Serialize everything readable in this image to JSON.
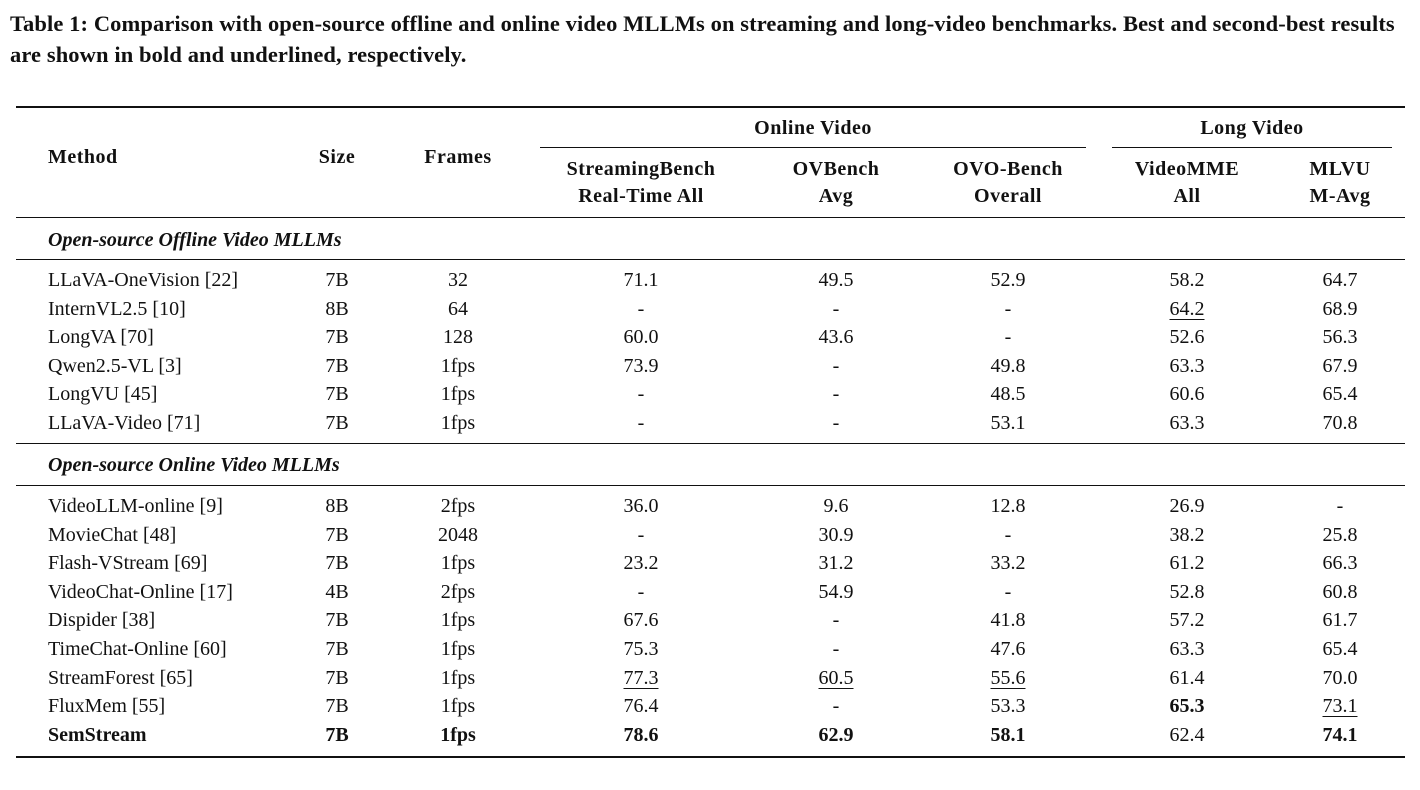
{
  "caption": "Table 1: Comparison with open-source offline and online video MLLMs on streaming and long-video benchmarks. Best and second-best results are shown in bold and underlined, respectively.",
  "header": {
    "method": "Method",
    "size": "Size",
    "frames": "Frames",
    "online_group": "Online Video",
    "long_group": "Long Video",
    "cols": [
      {
        "line1": "StreamingBench",
        "line2": "Real-Time All"
      },
      {
        "line1": "OVBench",
        "line2": "Avg"
      },
      {
        "line1": "OVO-Bench",
        "line2": "Overall"
      },
      {
        "line1": "VideoMME",
        "line2": "All"
      },
      {
        "line1": "MLVU",
        "line2": "M-Avg"
      }
    ]
  },
  "sections": [
    {
      "title": "Open-source Offline Video MLLMs",
      "rows": [
        {
          "method": "LLaVA-OneVision [22]",
          "size": "7B",
          "frames": "32",
          "values": [
            "71.1",
            "49.5",
            "52.9",
            "58.2",
            "64.7"
          ]
        },
        {
          "method": "InternVL2.5 [10]",
          "size": "8B",
          "frames": "64",
          "values": [
            "-",
            "-",
            "-",
            "64.2",
            "68.9"
          ],
          "underline": [
            3
          ]
        },
        {
          "method": "LongVA [70]",
          "size": "7B",
          "frames": "128",
          "values": [
            "60.0",
            "43.6",
            "-",
            "52.6",
            "56.3"
          ]
        },
        {
          "method": "Qwen2.5-VL [3]",
          "size": "7B",
          "frames": "1fps",
          "values": [
            "73.9",
            "-",
            "49.8",
            "63.3",
            "67.9"
          ]
        },
        {
          "method": "LongVU [45]",
          "size": "7B",
          "frames": "1fps",
          "values": [
            "-",
            "-",
            "48.5",
            "60.6",
            "65.4"
          ]
        },
        {
          "method": "LLaVA-Video [71]",
          "size": "7B",
          "frames": "1fps",
          "values": [
            "-",
            "-",
            "53.1",
            "63.3",
            "70.8"
          ]
        }
      ]
    },
    {
      "title": "Open-source Online Video MLLMs",
      "rows": [
        {
          "method": "VideoLLM-online [9]",
          "size": "8B",
          "frames": "2fps",
          "values": [
            "36.0",
            "9.6",
            "12.8",
            "26.9",
            "-"
          ]
        },
        {
          "method": "MovieChat [48]",
          "size": "7B",
          "frames": "2048",
          "values": [
            "-",
            "30.9",
            "-",
            "38.2",
            "25.8"
          ]
        },
        {
          "method": "Flash-VStream [69]",
          "size": "7B",
          "frames": "1fps",
          "values": [
            "23.2",
            "31.2",
            "33.2",
            "61.2",
            "66.3"
          ]
        },
        {
          "method": "VideoChat-Online [17]",
          "size": "4B",
          "frames": "2fps",
          "values": [
            "-",
            "54.9",
            "-",
            "52.8",
            "60.8"
          ]
        },
        {
          "method": "Dispider [38]",
          "size": "7B",
          "frames": "1fps",
          "values": [
            "67.6",
            "-",
            "41.8",
            "57.2",
            "61.7"
          ]
        },
        {
          "method": "TimeChat-Online [60]",
          "size": "7B",
          "frames": "1fps",
          "values": [
            "75.3",
            "-",
            "47.6",
            "63.3",
            "65.4"
          ]
        },
        {
          "method": "StreamForest [65]",
          "size": "7B",
          "frames": "1fps",
          "values": [
            "77.3",
            "60.5",
            "55.6",
            "61.4",
            "70.0"
          ],
          "underline": [
            0,
            1,
            2
          ]
        },
        {
          "method": "FluxMem [55]",
          "size": "7B",
          "frames": "1fps",
          "values": [
            "76.4",
            "-",
            "53.3",
            "65.3",
            "73.1"
          ],
          "bold": [
            3
          ],
          "underline": [
            4
          ]
        },
        {
          "method": "SemStream",
          "size": "7B",
          "frames": "1fps",
          "values": [
            "78.6",
            "62.9",
            "58.1",
            "62.4",
            "74.1"
          ],
          "row_bold": true,
          "bold": [
            0,
            1,
            2,
            4
          ]
        }
      ]
    }
  ]
}
